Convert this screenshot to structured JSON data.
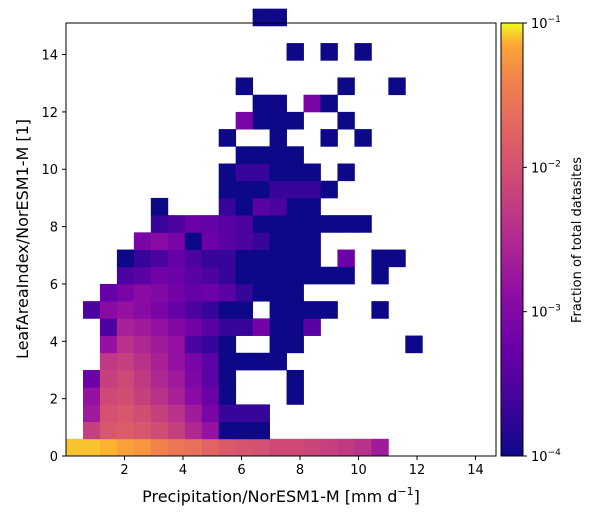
{
  "chart_data": {
    "type": "heatmap",
    "xlabel": "Precipitation/NorESM1-M [mm d",
    "xlabel_sup": "−1",
    "xlabel_end": "]",
    "ylabel": "LeafAreaIndex/NorESM1-M [1]",
    "xlim": [
      0,
      14.7
    ],
    "ylim": [
      0,
      15.1
    ],
    "x_ticks": [
      2,
      4,
      6,
      8,
      10,
      12,
      14
    ],
    "x_tick_labels": [
      "2",
      "4",
      "6",
      "8",
      "10",
      "12",
      "14"
    ],
    "y_ticks": [
      0,
      2,
      4,
      6,
      8,
      10,
      12,
      14
    ],
    "y_tick_labels": [
      "0",
      "2",
      "4",
      "6",
      "8",
      "10",
      "12",
      "14"
    ],
    "bin_width_x": 0.58,
    "bin_width_y": 0.6,
    "grid": false,
    "colorscale": "plasma",
    "colorbar": {
      "label": "Fraction of total datasites",
      "scale": "log",
      "range": [
        0.0001,
        0.1
      ],
      "ticks": [
        {
          "value": 0.1,
          "base": "10",
          "exp": "−1"
        },
        {
          "value": 0.01,
          "base": "10",
          "exp": "−2"
        },
        {
          "value": 0.001,
          "base": "10",
          "exp": "−3"
        },
        {
          "value": 0.0001,
          "base": "10",
          "exp": "−4"
        }
      ]
    },
    "cells": [
      {
        "i": 0,
        "j": 0,
        "v": 0.08
      },
      {
        "i": 1,
        "j": 0,
        "v": 0.08
      },
      {
        "i": 2,
        "j": 0,
        "v": 0.075
      },
      {
        "i": 3,
        "j": 0,
        "v": 0.065
      },
      {
        "i": 4,
        "j": 0,
        "v": 0.055
      },
      {
        "i": 5,
        "j": 0,
        "v": 0.04
      },
      {
        "i": 6,
        "j": 0,
        "v": 0.03
      },
      {
        "i": 7,
        "j": 0,
        "v": 0.025
      },
      {
        "i": 8,
        "j": 0,
        "v": 0.018
      },
      {
        "i": 9,
        "j": 0,
        "v": 0.013
      },
      {
        "i": 10,
        "j": 0,
        "v": 0.011
      },
      {
        "i": 11,
        "j": 0,
        "v": 0.01
      },
      {
        "i": 12,
        "j": 0,
        "v": 0.008
      },
      {
        "i": 13,
        "j": 0,
        "v": 0.008
      },
      {
        "i": 14,
        "j": 0,
        "v": 0.007
      },
      {
        "i": 15,
        "j": 0,
        "v": 0.006
      },
      {
        "i": 16,
        "j": 0,
        "v": 0.005
      },
      {
        "i": 17,
        "j": 0,
        "v": 0.004
      },
      {
        "i": 18,
        "j": 0,
        "v": 0.002
      },
      {
        "i": 1,
        "j": 1,
        "v": 0.006
      },
      {
        "i": 2,
        "j": 1,
        "v": 0.012
      },
      {
        "i": 3,
        "j": 1,
        "v": 0.014
      },
      {
        "i": 4,
        "j": 1,
        "v": 0.012
      },
      {
        "i": 5,
        "j": 1,
        "v": 0.009
      },
      {
        "i": 6,
        "j": 1,
        "v": 0.006
      },
      {
        "i": 7,
        "j": 1,
        "v": 0.003
      },
      {
        "i": 8,
        "j": 1,
        "v": 0.0015
      },
      {
        "i": 9,
        "j": 1,
        "v": 0.0001
      },
      {
        "i": 10,
        "j": 1,
        "v": 0.0001
      },
      {
        "i": 11,
        "j": 1,
        "v": 0.0001
      },
      {
        "i": 1,
        "j": 2,
        "v": 0.002
      },
      {
        "i": 2,
        "j": 2,
        "v": 0.01
      },
      {
        "i": 3,
        "j": 2,
        "v": 0.012
      },
      {
        "i": 4,
        "j": 2,
        "v": 0.009
      },
      {
        "i": 5,
        "j": 2,
        "v": 0.006
      },
      {
        "i": 6,
        "j": 2,
        "v": 0.004
      },
      {
        "i": 7,
        "j": 2,
        "v": 0.002
      },
      {
        "i": 8,
        "j": 2,
        "v": 0.0008
      },
      {
        "i": 9,
        "j": 2,
        "v": 0.0002
      },
      {
        "i": 10,
        "j": 2,
        "v": 0.0002
      },
      {
        "i": 11,
        "j": 2,
        "v": 0.0002
      },
      {
        "i": 1,
        "j": 3,
        "v": 0.0015
      },
      {
        "i": 2,
        "j": 3,
        "v": 0.008
      },
      {
        "i": 3,
        "j": 3,
        "v": 0.009
      },
      {
        "i": 4,
        "j": 3,
        "v": 0.006
      },
      {
        "i": 5,
        "j": 3,
        "v": 0.004
      },
      {
        "i": 6,
        "j": 3,
        "v": 0.0025
      },
      {
        "i": 7,
        "j": 3,
        "v": 0.0012
      },
      {
        "i": 8,
        "j": 3,
        "v": 0.0006
      },
      {
        "i": 9,
        "j": 3,
        "v": 0.0001
      },
      {
        "i": 13,
        "j": 3,
        "v": 0.0001
      },
      {
        "i": 1,
        "j": 4,
        "v": 0.0006
      },
      {
        "i": 2,
        "j": 4,
        "v": 0.006
      },
      {
        "i": 3,
        "j": 4,
        "v": 0.008
      },
      {
        "i": 4,
        "j": 4,
        "v": 0.005
      },
      {
        "i": 5,
        "j": 4,
        "v": 0.003
      },
      {
        "i": 6,
        "j": 4,
        "v": 0.002
      },
      {
        "i": 7,
        "j": 4,
        "v": 0.0009
      },
      {
        "i": 8,
        "j": 4,
        "v": 0.0004
      },
      {
        "i": 9,
        "j": 4,
        "v": 0.0001
      },
      {
        "i": 13,
        "j": 4,
        "v": 0.0001
      },
      {
        "i": 2,
        "j": 5,
        "v": 0.005
      },
      {
        "i": 3,
        "j": 5,
        "v": 0.006
      },
      {
        "i": 4,
        "j": 5,
        "v": 0.004
      },
      {
        "i": 5,
        "j": 5,
        "v": 0.0025
      },
      {
        "i": 6,
        "j": 5,
        "v": 0.0015
      },
      {
        "i": 7,
        "j": 5,
        "v": 0.0008
      },
      {
        "i": 8,
        "j": 5,
        "v": 0.0004
      },
      {
        "i": 9,
        "j": 5,
        "v": 0.0001
      },
      {
        "i": 10,
        "j": 5,
        "v": 0.0001
      },
      {
        "i": 11,
        "j": 5,
        "v": 0.0001
      },
      {
        "i": 12,
        "j": 5,
        "v": 0.0001
      },
      {
        "i": 2,
        "j": 6,
        "v": 0.0015
      },
      {
        "i": 3,
        "j": 6,
        "v": 0.004
      },
      {
        "i": 4,
        "j": 6,
        "v": 0.003
      },
      {
        "i": 5,
        "j": 6,
        "v": 0.002
      },
      {
        "i": 6,
        "j": 6,
        "v": 0.0015
      },
      {
        "i": 7,
        "j": 6,
        "v": 0.0003
      },
      {
        "i": 8,
        "j": 6,
        "v": 0.0002
      },
      {
        "i": 9,
        "j": 6,
        "v": 0.0001
      },
      {
        "i": 12,
        "j": 6,
        "v": 0.0001
      },
      {
        "i": 13,
        "j": 6,
        "v": 0.0001
      },
      {
        "i": 20,
        "j": 6,
        "v": 0.0001
      },
      {
        "i": 2,
        "j": 7,
        "v": 0.0003
      },
      {
        "i": 3,
        "j": 7,
        "v": 0.0025
      },
      {
        "i": 4,
        "j": 7,
        "v": 0.002
      },
      {
        "i": 5,
        "j": 7,
        "v": 0.0015
      },
      {
        "i": 6,
        "j": 7,
        "v": 0.001
      },
      {
        "i": 7,
        "j": 7,
        "v": 0.0007
      },
      {
        "i": 8,
        "j": 7,
        "v": 0.0004
      },
      {
        "i": 9,
        "j": 7,
        "v": 0.0002
      },
      {
        "i": 10,
        "j": 7,
        "v": 0.0002
      },
      {
        "i": 11,
        "j": 7,
        "v": 0.0007
      },
      {
        "i": 12,
        "j": 7,
        "v": 0.0001
      },
      {
        "i": 13,
        "j": 7,
        "v": 0.0001
      },
      {
        "i": 14,
        "j": 7,
        "v": 0.0004
      },
      {
        "i": 1,
        "j": 8,
        "v": 0.0003
      },
      {
        "i": 2,
        "j": 8,
        "v": 0.0012
      },
      {
        "i": 3,
        "j": 8,
        "v": 0.0015
      },
      {
        "i": 4,
        "j": 8,
        "v": 0.0012
      },
      {
        "i": 5,
        "j": 8,
        "v": 0.0008
      },
      {
        "i": 6,
        "j": 8,
        "v": 0.0005
      },
      {
        "i": 7,
        "j": 8,
        "v": 0.0003
      },
      {
        "i": 8,
        "j": 8,
        "v": 0.0002
      },
      {
        "i": 9,
        "j": 8,
        "v": 0.0001
      },
      {
        "i": 10,
        "j": 8,
        "v": 0.0001
      },
      {
        "i": 12,
        "j": 8,
        "v": 0.0001
      },
      {
        "i": 13,
        "j": 8,
        "v": 0.0001
      },
      {
        "i": 14,
        "j": 8,
        "v": 0.0001
      },
      {
        "i": 15,
        "j": 8,
        "v": 0.0001
      },
      {
        "i": 18,
        "j": 8,
        "v": 0.0001
      },
      {
        "i": 2,
        "j": 9,
        "v": 0.0005
      },
      {
        "i": 3,
        "j": 9,
        "v": 0.0008
      },
      {
        "i": 4,
        "j": 9,
        "v": 0.0012
      },
      {
        "i": 5,
        "j": 9,
        "v": 0.001
      },
      {
        "i": 6,
        "j": 9,
        "v": 0.0007
      },
      {
        "i": 7,
        "j": 9,
        "v": 0.0005
      },
      {
        "i": 8,
        "j": 9,
        "v": 0.0006
      },
      {
        "i": 9,
        "j": 9,
        "v": 0.0004
      },
      {
        "i": 10,
        "j": 9,
        "v": 0.0002
      },
      {
        "i": 11,
        "j": 9,
        "v": 0.0001
      },
      {
        "i": 12,
        "j": 9,
        "v": 0.0001
      },
      {
        "i": 13,
        "j": 9,
        "v": 0.0001
      },
      {
        "i": 3,
        "j": 10,
        "v": 0.0003
      },
      {
        "i": 4,
        "j": 10,
        "v": 0.0004
      },
      {
        "i": 5,
        "j": 10,
        "v": 0.0007
      },
      {
        "i": 6,
        "j": 10,
        "v": 0.0006
      },
      {
        "i": 7,
        "j": 10,
        "v": 0.0004
      },
      {
        "i": 8,
        "j": 10,
        "v": 0.0003
      },
      {
        "i": 9,
        "j": 10,
        "v": 0.0002
      },
      {
        "i": 10,
        "j": 10,
        "v": 0.0001
      },
      {
        "i": 11,
        "j": 10,
        "v": 0.0001
      },
      {
        "i": 12,
        "j": 10,
        "v": 0.0001
      },
      {
        "i": 13,
        "j": 10,
        "v": 0.0001
      },
      {
        "i": 14,
        "j": 10,
        "v": 0.0001
      },
      {
        "i": 15,
        "j": 10,
        "v": 0.0001
      },
      {
        "i": 16,
        "j": 10,
        "v": 0.0001
      },
      {
        "i": 18,
        "j": 10,
        "v": 0.0001
      },
      {
        "i": 3,
        "j": 11,
        "v": 0.0001
      },
      {
        "i": 4,
        "j": 11,
        "v": 0.0002
      },
      {
        "i": 5,
        "j": 11,
        "v": 0.0003
      },
      {
        "i": 6,
        "j": 11,
        "v": 0.0005
      },
      {
        "i": 7,
        "j": 11,
        "v": 0.0003
      },
      {
        "i": 8,
        "j": 11,
        "v": 0.0002
      },
      {
        "i": 9,
        "j": 11,
        "v": 0.0002
      },
      {
        "i": 10,
        "j": 11,
        "v": 0.0001
      },
      {
        "i": 11,
        "j": 11,
        "v": 0.0001
      },
      {
        "i": 12,
        "j": 11,
        "v": 0.0001
      },
      {
        "i": 13,
        "j": 11,
        "v": 0.0001
      },
      {
        "i": 14,
        "j": 11,
        "v": 0.0001
      },
      {
        "i": 16,
        "j": 11,
        "v": 0.0006
      },
      {
        "i": 18,
        "j": 11,
        "v": 0.0001
      },
      {
        "i": 19,
        "j": 11,
        "v": 0.0001
      },
      {
        "i": 4,
        "j": 12,
        "v": 0.0008
      },
      {
        "i": 5,
        "j": 12,
        "v": 0.0012
      },
      {
        "i": 6,
        "j": 12,
        "v": 0.0008
      },
      {
        "i": 7,
        "j": 12,
        "v": 0.0001
      },
      {
        "i": 8,
        "j": 12,
        "v": 0.0006
      },
      {
        "i": 9,
        "j": 12,
        "v": 0.0004
      },
      {
        "i": 10,
        "j": 12,
        "v": 0.0003
      },
      {
        "i": 11,
        "j": 12,
        "v": 0.0002
      },
      {
        "i": 12,
        "j": 12,
        "v": 0.0001
      },
      {
        "i": 13,
        "j": 12,
        "v": 0.0001
      },
      {
        "i": 14,
        "j": 12,
        "v": 0.0001
      },
      {
        "i": 5,
        "j": 13,
        "v": 0.0002
      },
      {
        "i": 6,
        "j": 13,
        "v": 0.0003
      },
      {
        "i": 7,
        "j": 13,
        "v": 0.0006
      },
      {
        "i": 8,
        "j": 13,
        "v": 0.0005
      },
      {
        "i": 9,
        "j": 13,
        "v": 0.0004
      },
      {
        "i": 10,
        "j": 13,
        "v": 0.0003
      },
      {
        "i": 11,
        "j": 13,
        "v": 0.0001
      },
      {
        "i": 12,
        "j": 13,
        "v": 0.0001
      },
      {
        "i": 13,
        "j": 13,
        "v": 0.0001
      },
      {
        "i": 14,
        "j": 13,
        "v": 0.0001
      },
      {
        "i": 15,
        "j": 13,
        "v": 0.0001
      },
      {
        "i": 16,
        "j": 13,
        "v": 0.0001
      },
      {
        "i": 17,
        "j": 13,
        "v": 0.0001
      },
      {
        "i": 5,
        "j": 14,
        "v": 0.0001
      },
      {
        "i": 9,
        "j": 14,
        "v": 0.0002
      },
      {
        "i": 10,
        "j": 14,
        "v": 0.0001
      },
      {
        "i": 11,
        "j": 14,
        "v": 0.0004
      },
      {
        "i": 12,
        "j": 14,
        "v": 0.0003
      },
      {
        "i": 13,
        "j": 14,
        "v": 0.0001
      },
      {
        "i": 14,
        "j": 14,
        "v": 0.0001
      },
      {
        "i": 9,
        "j": 15,
        "v": 0.0001
      },
      {
        "i": 10,
        "j": 15,
        "v": 0.0001
      },
      {
        "i": 11,
        "j": 15,
        "v": 0.0001
      },
      {
        "i": 12,
        "j": 15,
        "v": 0.0002
      },
      {
        "i": 13,
        "j": 15,
        "v": 0.0002
      },
      {
        "i": 14,
        "j": 15,
        "v": 0.0002
      },
      {
        "i": 15,
        "j": 15,
        "v": 0.0001
      },
      {
        "i": 9,
        "j": 16,
        "v": 0.0001
      },
      {
        "i": 10,
        "j": 16,
        "v": 0.0002
      },
      {
        "i": 11,
        "j": 16,
        "v": 0.0002
      },
      {
        "i": 12,
        "j": 16,
        "v": 0.0001
      },
      {
        "i": 13,
        "j": 16,
        "v": 0.0001
      },
      {
        "i": 14,
        "j": 16,
        "v": 0.0001
      },
      {
        "i": 16,
        "j": 16,
        "v": 0.0001
      },
      {
        "i": 10,
        "j": 17,
        "v": 0.0001
      },
      {
        "i": 11,
        "j": 17,
        "v": 0.0001
      },
      {
        "i": 12,
        "j": 17,
        "v": 0.0001
      },
      {
        "i": 13,
        "j": 17,
        "v": 0.0001
      },
      {
        "i": 9,
        "j": 18,
        "v": 0.0001
      },
      {
        "i": 12,
        "j": 18,
        "v": 0.0001
      },
      {
        "i": 15,
        "j": 18,
        "v": 0.0001
      },
      {
        "i": 17,
        "j": 18,
        "v": 0.0001
      },
      {
        "i": 10,
        "j": 19,
        "v": 0.0008
      },
      {
        "i": 11,
        "j": 19,
        "v": 0.0001
      },
      {
        "i": 12,
        "j": 19,
        "v": 0.0001
      },
      {
        "i": 13,
        "j": 19,
        "v": 0.0001
      },
      {
        "i": 16,
        "j": 19,
        "v": 0.0001
      },
      {
        "i": 11,
        "j": 20,
        "v": 0.0001
      },
      {
        "i": 12,
        "j": 20,
        "v": 0.0001
      },
      {
        "i": 14,
        "j": 20,
        "v": 0.0008
      },
      {
        "i": 15,
        "j": 20,
        "v": 0.0001
      },
      {
        "i": 10,
        "j": 21,
        "v": 0.0001
      },
      {
        "i": 16,
        "j": 21,
        "v": 0.0001
      },
      {
        "i": 19,
        "j": 21,
        "v": 0.0001
      },
      {
        "i": 13,
        "j": 23,
        "v": 0.0001
      },
      {
        "i": 15,
        "j": 23,
        "v": 0.0001
      },
      {
        "i": 17,
        "j": 23,
        "v": 0.0001
      },
      {
        "i": 11,
        "j": 25,
        "v": 0.0001
      },
      {
        "i": 12,
        "j": 25,
        "v": 0.0001
      }
    ]
  }
}
